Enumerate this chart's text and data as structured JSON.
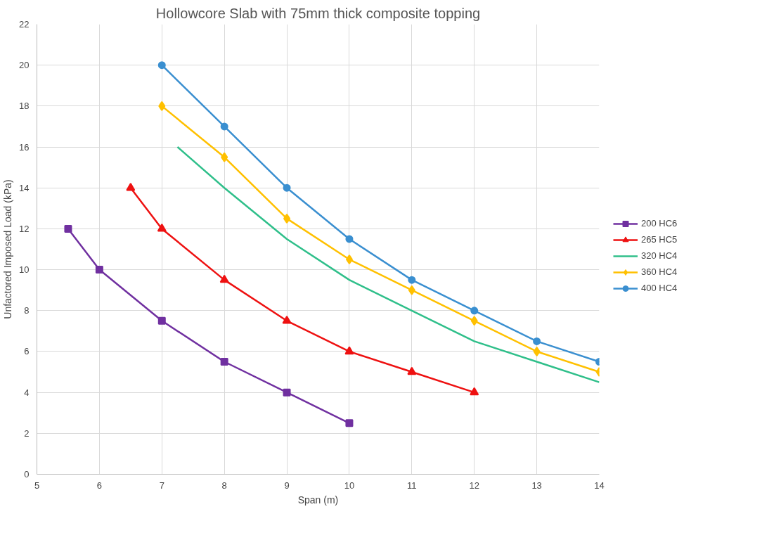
{
  "chart_data": {
    "type": "line",
    "title": "Hollowcore Slab with 75mm thick composite topping",
    "xlabel": "Span (m)",
    "ylabel": "Unfactored Imposed Load (kPa)",
    "xlim": [
      5,
      14
    ],
    "xticks": [
      5,
      6,
      7,
      8,
      9,
      10,
      11,
      12,
      13,
      14
    ],
    "ylim": [
      0,
      22
    ],
    "yticks": [
      0,
      2,
      4,
      6,
      8,
      10,
      12,
      14,
      16,
      18,
      20,
      22
    ],
    "grid": true,
    "legend": "right",
    "series": [
      {
        "name": "200 HC6",
        "color": "#7030a0",
        "marker": "square",
        "x": [
          5.5,
          6,
          7,
          8,
          9,
          10
        ],
        "values": [
          12,
          10,
          7.5,
          5.5,
          4,
          2.5
        ]
      },
      {
        "name": "265 HC5",
        "color": "#ee1111",
        "marker": "triangle",
        "x": [
          6.5,
          7,
          8,
          9,
          10,
          11,
          12
        ],
        "values": [
          14,
          12,
          9.5,
          7.5,
          6,
          5,
          4
        ]
      },
      {
        "name": "320 HC4",
        "color": "#2fbf8a",
        "marker": "none",
        "x": [
          7.25,
          8,
          9,
          10,
          11,
          12,
          13,
          14
        ],
        "values": [
          16,
          14,
          11.5,
          9.5,
          8,
          6.5,
          5.5,
          4.5
        ]
      },
      {
        "name": "360 HC4",
        "color": "#ffc000",
        "marker": "diamond",
        "x": [
          7,
          8,
          9,
          10,
          11,
          12,
          13,
          14
        ],
        "values": [
          18,
          15.5,
          12.5,
          10.5,
          9,
          7.5,
          6,
          5
        ]
      },
      {
        "name": "400 HC4",
        "color": "#3a8fd0",
        "marker": "circle",
        "x": [
          7,
          8,
          9,
          10,
          11,
          12,
          13,
          14
        ],
        "values": [
          20,
          17,
          14,
          11.5,
          9.5,
          8,
          6.5,
          5.5
        ]
      }
    ]
  }
}
